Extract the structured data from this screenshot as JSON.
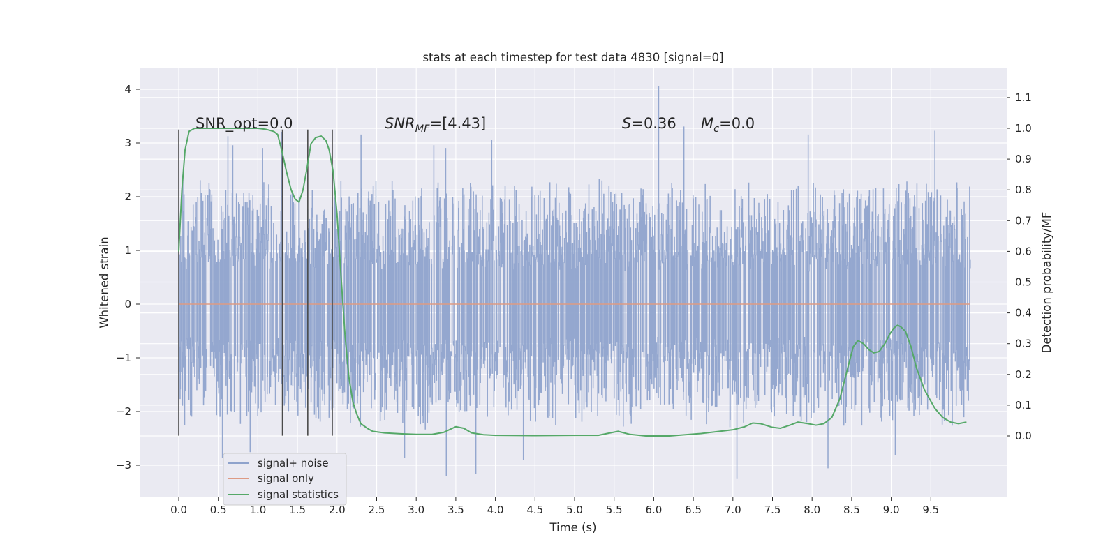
{
  "chart_data": {
    "type": "line",
    "title": "stats at each timestep for test data 4830 [signal=0]",
    "xlabel": "Time (s)",
    "ylabel": "Whitened strain",
    "ylabel_right": "Detection probability/MF",
    "xlim": [
      -0.5,
      10.4
    ],
    "ylim": [
      -3.6,
      4.4
    ],
    "ylim_right": [
      -0.2,
      1.2
    ],
    "x_ticks": [
      0.0,
      0.5,
      1.0,
      1.5,
      2.0,
      2.5,
      3.0,
      3.5,
      4.0,
      4.5,
      5.0,
      5.5,
      6.0,
      6.5,
      7.0,
      7.5,
      8.0,
      8.5,
      9.0,
      9.5
    ],
    "x_tick_labels": [
      "0.0",
      "0.5",
      "1.0",
      "1.5",
      "2.0",
      "2.5",
      "3.0",
      "3.5",
      "4.0",
      "4.5",
      "5.0",
      "5.5",
      "6.0",
      "6.5",
      "7.0",
      "7.5",
      "8.0",
      "8.5",
      "9.0",
      "9.5"
    ],
    "y_ticks": [
      -3,
      -2,
      -1,
      0,
      1,
      2,
      3,
      4
    ],
    "y_tick_labels": [
      "−3",
      "−2",
      "−1",
      "0",
      "1",
      "2",
      "3",
      "4"
    ],
    "y_right_ticks": [
      0.0,
      0.1,
      0.2,
      0.3,
      0.4,
      0.5,
      0.6,
      0.7,
      0.8,
      0.9,
      1.0,
      1.1
    ],
    "y_right_tick_labels": [
      "0.0",
      "0.1",
      "0.2",
      "0.3",
      "0.4",
      "0.5",
      "0.6",
      "0.7",
      "0.8",
      "0.9",
      "1.0",
      "1.1"
    ],
    "grid": true,
    "legend_placement": "lower-left",
    "annotations": {
      "snr_opt": "SNR_opt=0.0",
      "snr_mf_sym": "SNR",
      "snr_mf_sub": "MF",
      "snr_mf_val": "=[4.43]",
      "s_sym": "S",
      "s_val": "=0.36",
      "mc_sym": "M",
      "mc_sub": "c",
      "mc_val": "=0.0"
    },
    "markers_x": [
      0.0,
      1.31,
      1.63,
      1.94
    ],
    "markers_range": [
      -2.45,
      3.25
    ],
    "series": [
      {
        "name": "signal+ noise",
        "color": "#8fa3cc",
        "axis": "left",
        "x_range": [
          0.0,
          10.0
        ],
        "peaks": [
          {
            "x": 0.05,
            "y": 2.4
          },
          {
            "x": 0.27,
            "y": 2.3
          },
          {
            "x": 0.62,
            "y": 3.12
          },
          {
            "x": 0.68,
            "y": 2.95
          },
          {
            "x": 1.06,
            "y": 2.9
          },
          {
            "x": 1.3,
            "y": 3.2
          },
          {
            "x": 2.3,
            "y": 3.15
          },
          {
            "x": 3.22,
            "y": 2.95
          },
          {
            "x": 3.37,
            "y": 2.9
          },
          {
            "x": 3.95,
            "y": 3.05
          },
          {
            "x": 6.06,
            "y": 4.05
          },
          {
            "x": 6.38,
            "y": 3.3
          },
          {
            "x": 7.95,
            "y": 3.15
          },
          {
            "x": 9.55,
            "y": 3.22
          }
        ],
        "troughs": [
          {
            "x": 0.55,
            "y": -2.85
          },
          {
            "x": 0.9,
            "y": -2.75
          },
          {
            "x": 2.85,
            "y": -2.85
          },
          {
            "x": 3.38,
            "y": -3.2
          },
          {
            "x": 3.75,
            "y": -3.15
          },
          {
            "x": 4.35,
            "y": -2.9
          },
          {
            "x": 7.05,
            "y": -3.25
          },
          {
            "x": 8.2,
            "y": -3.05
          },
          {
            "x": 9.05,
            "y": -2.8
          }
        ]
      },
      {
        "name": "signal only",
        "color": "#dd9a84",
        "axis": "left",
        "x": [
          0.0,
          10.0
        ],
        "y": [
          0.0,
          0.0
        ]
      },
      {
        "name": "signal statistics",
        "color": "#55a868",
        "axis": "right",
        "x": [
          0.0,
          0.04,
          0.08,
          0.13,
          0.2,
          0.3,
          0.5,
          0.8,
          1.0,
          1.1,
          1.2,
          1.25,
          1.3,
          1.36,
          1.42,
          1.47,
          1.52,
          1.57,
          1.62,
          1.67,
          1.73,
          1.8,
          1.86,
          1.9,
          1.95,
          2.0,
          2.05,
          2.1,
          2.15,
          2.2,
          2.25,
          2.3,
          2.38,
          2.45,
          2.6,
          2.8,
          3.0,
          3.2,
          3.35,
          3.5,
          3.6,
          3.7,
          3.85,
          4.0,
          4.5,
          5.0,
          5.3,
          5.45,
          5.55,
          5.7,
          5.9,
          6.2,
          6.6,
          7.0,
          7.15,
          7.25,
          7.35,
          7.5,
          7.6,
          7.72,
          7.82,
          7.95,
          8.05,
          8.15,
          8.25,
          8.35,
          8.45,
          8.52,
          8.58,
          8.65,
          8.72,
          8.78,
          8.85,
          8.92,
          8.98,
          9.03,
          9.08,
          9.12,
          9.18,
          9.25,
          9.32,
          9.42,
          9.55,
          9.65,
          9.75,
          9.85,
          9.95
        ],
        "y": [
          0.6,
          0.8,
          0.93,
          0.99,
          1.0,
          1.0,
          1.0,
          1.0,
          1.0,
          0.997,
          0.99,
          0.98,
          0.93,
          0.86,
          0.8,
          0.77,
          0.76,
          0.8,
          0.87,
          0.95,
          0.97,
          0.975,
          0.96,
          0.93,
          0.86,
          0.72,
          0.52,
          0.33,
          0.19,
          0.11,
          0.07,
          0.04,
          0.025,
          0.015,
          0.01,
          0.007,
          0.005,
          0.005,
          0.012,
          0.03,
          0.025,
          0.01,
          0.004,
          0.002,
          0.001,
          0.002,
          0.002,
          0.01,
          0.015,
          0.005,
          0.0,
          0.0,
          0.008,
          0.02,
          0.03,
          0.042,
          0.04,
          0.028,
          0.025,
          0.035,
          0.045,
          0.04,
          0.035,
          0.04,
          0.06,
          0.12,
          0.22,
          0.29,
          0.31,
          0.3,
          0.28,
          0.27,
          0.275,
          0.3,
          0.33,
          0.35,
          0.36,
          0.355,
          0.34,
          0.29,
          0.22,
          0.15,
          0.09,
          0.06,
          0.045,
          0.04,
          0.045
        ]
      }
    ]
  }
}
